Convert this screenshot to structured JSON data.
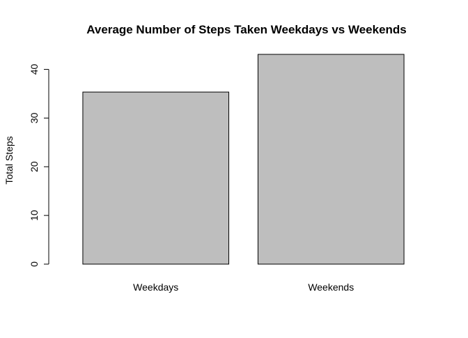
{
  "chart_data": {
    "type": "bar",
    "title": "Average Number of Steps Taken Weekdays vs Weekends",
    "xlabel": "",
    "ylabel": "Total Steps",
    "categories": [
      "Weekdays",
      "Weekends"
    ],
    "values": [
      35.34,
      43.08
    ],
    "ylim": [
      0,
      43.08
    ],
    "yticks": [
      0,
      10,
      20,
      30,
      40
    ],
    "bar_fill": "#bebebe",
    "bar_stroke": "#000000",
    "grid": false,
    "legend": "none"
  }
}
